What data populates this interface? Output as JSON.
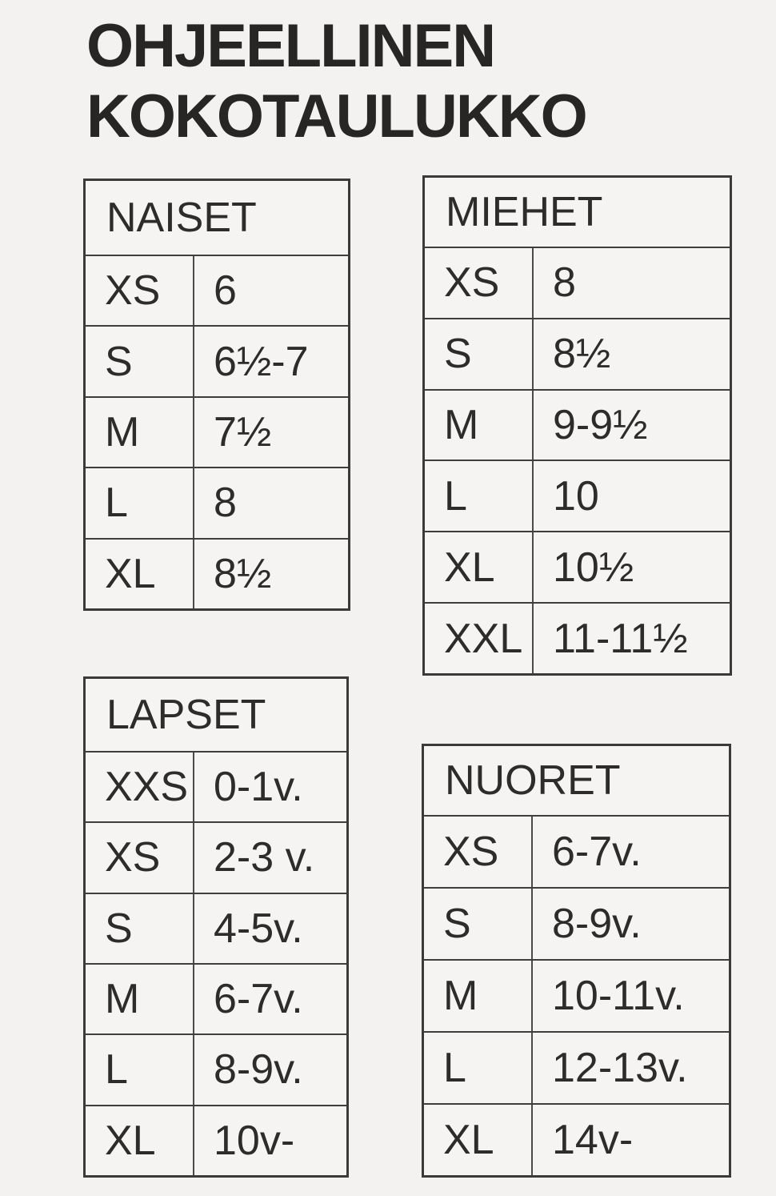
{
  "page": {
    "title": "OHJEELLINEN\nKOKOTAULUKKO",
    "background_color": "#f3f2f1",
    "text_color": "#2d2c2b",
    "border_color": "#3a3a3a"
  },
  "tables": [
    {
      "id": "naiset",
      "title": "NAISET",
      "rows": [
        {
          "size": "XS",
          "value": "6"
        },
        {
          "size": "S",
          "value": "6½-7"
        },
        {
          "size": "M",
          "value": "7½"
        },
        {
          "size": "L",
          "value": "8"
        },
        {
          "size": "XL",
          "value": "8½"
        }
      ]
    },
    {
      "id": "miehet",
      "title": "MIEHET",
      "rows": [
        {
          "size": "XS",
          "value": "8"
        },
        {
          "size": "S",
          "value": "8½"
        },
        {
          "size": "M",
          "value": "9-9½"
        },
        {
          "size": "L",
          "value": "10"
        },
        {
          "size": "XL",
          "value": "10½"
        },
        {
          "size": "XXL",
          "value": "11-11½"
        }
      ]
    },
    {
      "id": "lapset",
      "title": "LAPSET",
      "rows": [
        {
          "size": "XXS",
          "value": "0-1v."
        },
        {
          "size": "XS",
          "value": "2-3 v."
        },
        {
          "size": "S",
          "value": "4-5v."
        },
        {
          "size": "M",
          "value": "6-7v."
        },
        {
          "size": "L",
          "value": "8-9v."
        },
        {
          "size": "XL",
          "value": "10v-"
        }
      ]
    },
    {
      "id": "nuoret",
      "title": "NUORET",
      "rows": [
        {
          "size": "XS",
          "value": "6-7v."
        },
        {
          "size": "S",
          "value": "8-9v."
        },
        {
          "size": "M",
          "value": "10-11v."
        },
        {
          "size": "L",
          "value": "12-13v."
        },
        {
          "size": "XL",
          "value": "14v-"
        }
      ]
    }
  ]
}
